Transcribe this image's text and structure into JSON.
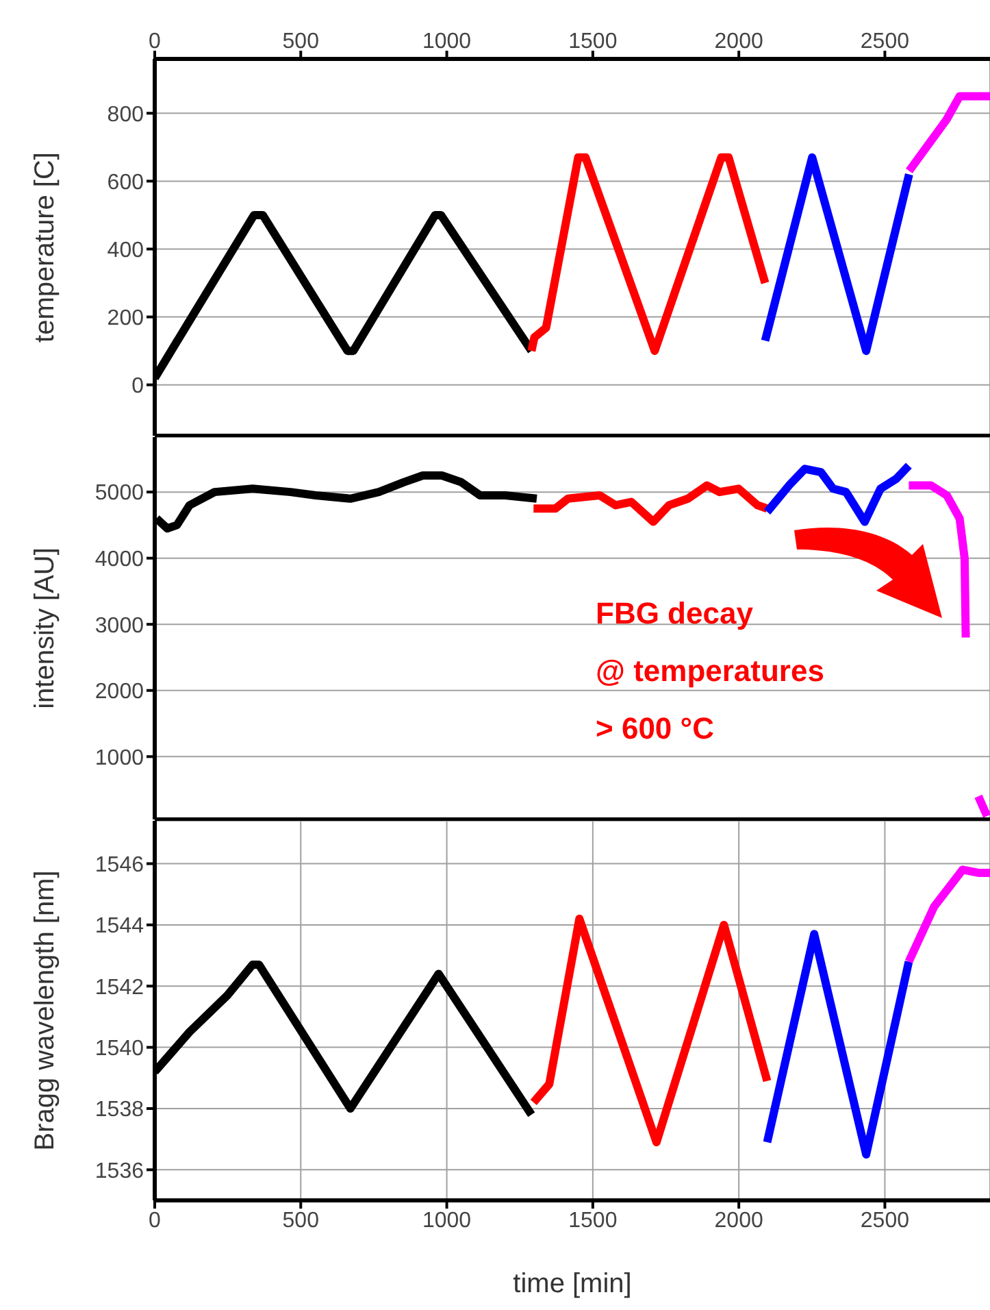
{
  "chart_data": [
    {
      "type": "line",
      "ylabel": "temperature [C]",
      "xlim": [
        0,
        2860
      ],
      "xticks": [
        0,
        500,
        1000,
        1500,
        2000,
        2500
      ],
      "tick_labels": "y",
      "x2lim": [
        0,
        2860
      ],
      "x2ticks": [
        0,
        500,
        1000,
        1500,
        2000,
        2500
      ],
      "ylim": [
        -150,
        960
      ],
      "yticks": [
        0,
        200,
        400,
        600,
        800
      ],
      "grid": true,
      "series": [
        {
          "color": "#000000",
          "x": [
            0,
            120,
            340,
            370,
            660,
            680,
            960,
            980,
            1290
          ],
          "values": [
            20,
            190,
            500,
            500,
            100,
            100,
            500,
            500,
            100
          ]
        },
        {
          "color": "#ff0000",
          "x": [
            1290,
            1300,
            1340,
            1450,
            1475,
            1712,
            1940,
            1965,
            2090
          ],
          "values": [
            100,
            140,
            168,
            670,
            670,
            100,
            670,
            670,
            300
          ]
        },
        {
          "color": "#0000ff",
          "x": [
            2090,
            2251,
            2436,
            2583
          ],
          "values": [
            130,
            670,
            100,
            620
          ]
        },
        {
          "color": "#ff00ff",
          "x": [
            2583,
            2711,
            2756,
            2860
          ],
          "values": [
            630,
            781,
            850,
            850
          ]
        }
      ]
    },
    {
      "type": "line",
      "ylabel": "intensity [AU]",
      "xlim": [
        0,
        2860
      ],
      "xticks": [
        0,
        500,
        1000,
        1500,
        2000,
        2500
      ],
      "ylim": [
        50,
        5830
      ],
      "yticks": [
        1000,
        2000,
        3000,
        4000,
        5000
      ],
      "grid": true,
      "tick_labels": "y",
      "annotations": [
        "FBG decay\n@ temperatures\n> 600 °C"
      ],
      "series": [
        {
          "color": "#000000",
          "x": [
            6,
            43,
            76,
            119,
            205,
            335,
            465,
            551,
            670,
            767,
            854,
            918,
            983,
            1049,
            1114,
            1200,
            1308
          ],
          "values": [
            4600,
            4450,
            4500,
            4800,
            5000,
            5050,
            5000,
            4950,
            4900,
            5000,
            5150,
            5250,
            5250,
            5150,
            4950,
            4950,
            4900
          ]
        },
        {
          "color": "#ff0000",
          "x": [
            1297,
            1372,
            1415,
            1523,
            1578,
            1632,
            1707,
            1761,
            1826,
            1891,
            1934,
            1999,
            2064,
            2097
          ],
          "values": [
            4750,
            4750,
            4900,
            4950,
            4800,
            4850,
            4550,
            4800,
            4900,
            5100,
            5000,
            5050,
            4800,
            4750
          ]
        },
        {
          "color": "#0000ff",
          "x": [
            2097,
            2172,
            2226,
            2281,
            2323,
            2367,
            2431,
            2485,
            2539,
            2582
          ],
          "values": [
            4700,
            5100,
            5350,
            5300,
            5050,
            5000,
            4550,
            5050,
            5200,
            5400
          ]
        },
        {
          "color": "#ff00ff",
          "x": [
            2582,
            2658,
            2712,
            2756,
            2773,
            2777,
            2790,
            2820,
            2850
          ],
          "values": [
            5100,
            5100,
            4950,
            4600,
            4000,
            2800,
            null,
            400,
            100
          ]
        }
      ]
    },
    {
      "type": "line",
      "ylabel": "Bragg wavelength [nm]",
      "xlabel": "time [min]",
      "xlim": [
        0,
        2860
      ],
      "xticks": [
        0,
        500,
        1000,
        1500,
        2000,
        2500
      ],
      "ylim": [
        1535,
        1547.4
      ],
      "yticks": [
        1536,
        1538,
        1540,
        1542,
        1544,
        1546
      ],
      "grid": true,
      "series": [
        {
          "color": "#000000",
          "x": [
            0,
            119,
            249,
            335,
            357,
            670,
            972,
            1290
          ],
          "values": [
            1539.2,
            1540.5,
            1541.7,
            1542.7,
            1542.7,
            1538,
            1542.4,
            1537.8
          ]
        },
        {
          "color": "#ff0000",
          "x": [
            1297,
            1351,
            1454,
            1718,
            1949,
            2097
          ],
          "values": [
            1538.2,
            1538.8,
            1544.2,
            1536.9,
            1544,
            1538.9
          ]
        },
        {
          "color": "#0000ff",
          "x": [
            2097,
            2258,
            2436,
            2582
          ],
          "values": [
            1536.9,
            1543.7,
            1536.5,
            1542.8
          ]
        },
        {
          "color": "#ff00ff",
          "x": [
            2582,
            2669,
            2766,
            2820,
            2860
          ],
          "values": [
            1542.8,
            1544.6,
            1545.8,
            1545.7,
            1545.7
          ]
        }
      ]
    }
  ]
}
